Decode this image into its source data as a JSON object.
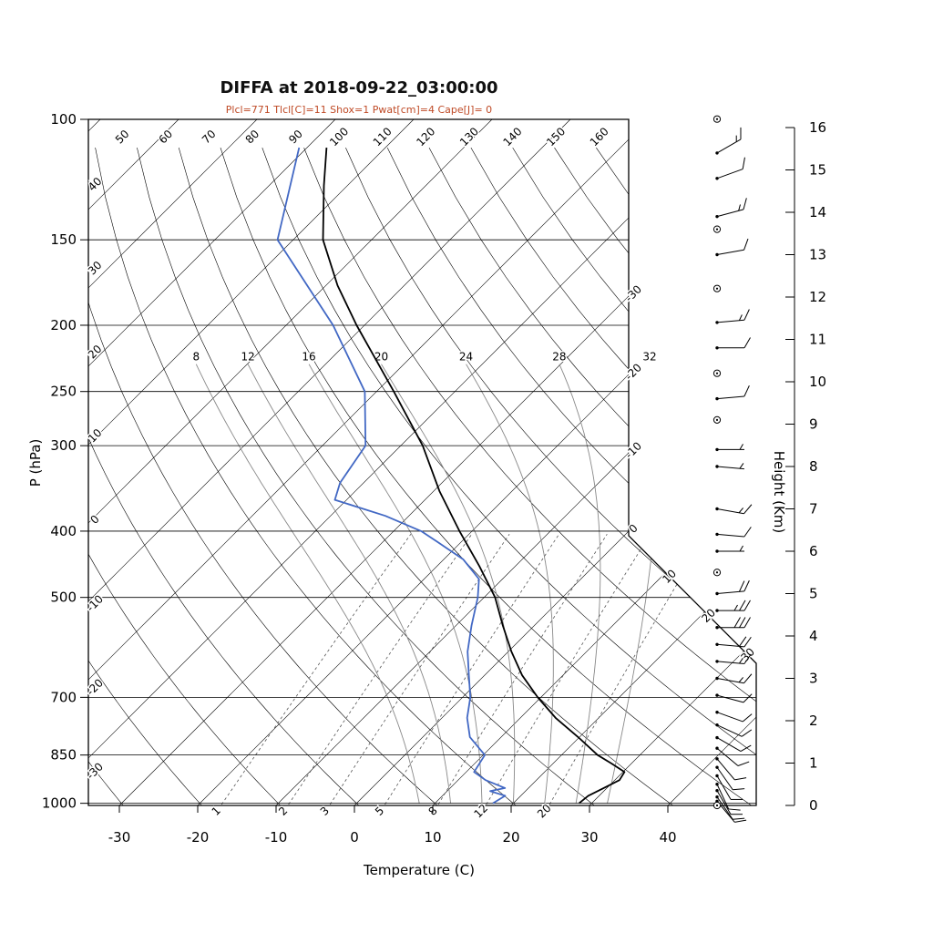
{
  "title": "DIFFA at 2018-09-22_03:00:00",
  "subtitle": "Plcl=771 Tlcl[C]=11 Shox=1 Pwat[cm]=4 Cape[J]= 0",
  "colors": {
    "temperature": "#000000",
    "dewpoint": "#4268c4",
    "subtitle": "#bf4a26",
    "grid": "#000000",
    "moist_adiabat": "#888888",
    "mixing_ratio": "#555555"
  },
  "axes": {
    "pressure_label": "P (hPa)",
    "pressure_ticks": [
      100,
      150,
      200,
      250,
      300,
      400,
      500,
      700,
      850,
      1000
    ],
    "temperature_label": "Temperature (C)",
    "temperature_ticks": [
      -30,
      -20,
      -10,
      0,
      10,
      20,
      30,
      40
    ],
    "height_label": "Height (Km)",
    "height_ticks": [
      0,
      1,
      2,
      3,
      4,
      5,
      6,
      7,
      8,
      9,
      10,
      11,
      12,
      13,
      14,
      15,
      16
    ]
  },
  "background": {
    "isotherms": {
      "min": -120,
      "max": 40,
      "step": 10
    },
    "isotherm_right_edge_labels": [
      -30,
      -20,
      -10,
      0
    ],
    "isotherm_diagonal_labels": [
      10,
      20,
      30
    ],
    "dry_adiabats": {
      "min": -30,
      "max": 160,
      "step": 10
    },
    "dry_adiabat_top_labels": [
      50,
      60,
      70,
      80,
      90,
      100,
      110,
      120,
      130,
      140,
      150,
      160
    ],
    "dry_adiabat_left_labels": [
      40,
      30,
      20,
      10,
      0,
      -10,
      -20,
      -30
    ],
    "moist_adiabat_labels": [
      8,
      12,
      16,
      20,
      24,
      28,
      32
    ],
    "moist_label_pressure": 228,
    "mixing_ratio_values": [
      1,
      2,
      3,
      5,
      8,
      12,
      20
    ]
  },
  "chart_data": {
    "type": "line",
    "chart_kind": "skew-t log-p atmospheric sounding",
    "station": "DIFFA",
    "datetime": "2018-09-22_03:00:00",
    "indices": {
      "Plcl": 771,
      "Tlcl_C": 11,
      "Shox": 1,
      "Pwat_cm": 4,
      "Cape_J": 0
    },
    "xlabel": "Temperature (C)",
    "ylabel_left": "P (hPa)",
    "ylabel_right": "Height (Km)",
    "pressure_range_hPa": [
      100,
      1006
    ],
    "temperature_axis_range_C": [
      -35,
      45
    ],
    "series": [
      {
        "name": "temperature",
        "color_key": "temperature",
        "pressure_hPa": [
          1000,
          975,
          950,
          925,
          900,
          875,
          850,
          800,
          750,
          700,
          650,
          600,
          550,
          500,
          450,
          400,
          350,
          300,
          250,
          200,
          175,
          150,
          125,
          110
        ],
        "value_C": [
          28.4,
          28.6,
          29.6,
          30.6,
          30.2,
          27.5,
          24.6,
          19.8,
          14.5,
          9.6,
          4.8,
          0.4,
          -4.0,
          -8.6,
          -14.6,
          -21.6,
          -29.2,
          -37.2,
          -47.8,
          -61.0,
          -68.5,
          -76.2,
          -83.0,
          -87.5
        ]
      },
      {
        "name": "dewpoint",
        "color_key": "dewpoint",
        "pressure_hPa": [
          1000,
          975,
          960,
          950,
          925,
          900,
          850,
          800,
          750,
          700,
          650,
          600,
          550,
          500,
          470,
          440,
          415,
          400,
          380,
          360,
          340,
          300,
          250,
          200,
          150,
          110
        ],
        "value_C": [
          17.4,
          18.0,
          15.5,
          17.0,
          13.5,
          11.0,
          10.2,
          6.0,
          3.2,
          1.0,
          -2.0,
          -5.2,
          -8.0,
          -10.8,
          -13.0,
          -17.5,
          -23.0,
          -26.5,
          -33.0,
          -41.5,
          -43.0,
          -44.5,
          -51.5,
          -64.0,
          -82.0,
          -91.0
        ]
      }
    ],
    "winds": [
      {
        "km": 16.2,
        "dir": 0,
        "kt": 0
      },
      {
        "km": 15.4,
        "dir": 60,
        "kt": 15
      },
      {
        "km": 14.8,
        "dir": 70,
        "kt": 10
      },
      {
        "km": 13.9,
        "dir": 75,
        "kt": 15
      },
      {
        "km": 13.6,
        "dir": 0,
        "kt": 0
      },
      {
        "km": 13.0,
        "dir": 80,
        "kt": 10
      },
      {
        "km": 12.2,
        "dir": 0,
        "kt": 0
      },
      {
        "km": 11.4,
        "dir": 85,
        "kt": 15
      },
      {
        "km": 10.8,
        "dir": 90,
        "kt": 10
      },
      {
        "km": 10.2,
        "dir": 0,
        "kt": 0
      },
      {
        "km": 9.6,
        "dir": 85,
        "kt": 10
      },
      {
        "km": 9.1,
        "dir": 0,
        "kt": 0
      },
      {
        "km": 8.4,
        "dir": 90,
        "kt": 5
      },
      {
        "km": 8.0,
        "dir": 95,
        "kt": 5
      },
      {
        "km": 7.0,
        "dir": 100,
        "kt": 15
      },
      {
        "km": 6.4,
        "dir": 95,
        "kt": 10
      },
      {
        "km": 6.0,
        "dir": 90,
        "kt": 3
      },
      {
        "km": 5.5,
        "dir": 0,
        "kt": 0
      },
      {
        "km": 5.0,
        "dir": 85,
        "kt": 20
      },
      {
        "km": 4.6,
        "dir": 90,
        "kt": 25
      },
      {
        "km": 4.2,
        "dir": 90,
        "kt": 30
      },
      {
        "km": 3.8,
        "dir": 95,
        "kt": 20
      },
      {
        "km": 3.4,
        "dir": 95,
        "kt": 15
      },
      {
        "km": 3.0,
        "dir": 100,
        "kt": 15
      },
      {
        "km": 2.6,
        "dir": 105,
        "kt": 10
      },
      {
        "km": 2.2,
        "dir": 110,
        "kt": 10
      },
      {
        "km": 1.9,
        "dir": 115,
        "kt": 10
      },
      {
        "km": 1.6,
        "dir": 120,
        "kt": 10
      },
      {
        "km": 1.35,
        "dir": 130,
        "kt": 12
      },
      {
        "km": 1.1,
        "dir": 140,
        "kt": 12
      },
      {
        "km": 0.9,
        "dir": 145,
        "kt": 10
      },
      {
        "km": 0.7,
        "dir": 150,
        "kt": 12
      },
      {
        "km": 0.5,
        "dir": 155,
        "kt": 10
      },
      {
        "km": 0.35,
        "dir": 150,
        "kt": 10
      },
      {
        "km": 0.2,
        "dir": 145,
        "kt": 10
      },
      {
        "km": 0.1,
        "dir": 140,
        "kt": 8
      },
      {
        "km": 0.0,
        "dir": 0,
        "kt": 0
      }
    ]
  }
}
